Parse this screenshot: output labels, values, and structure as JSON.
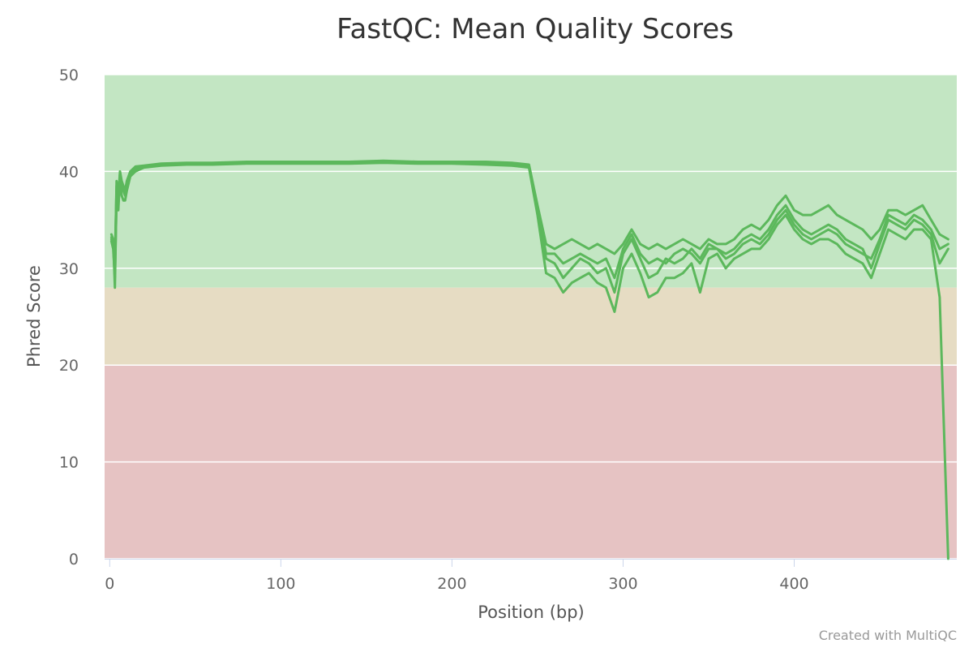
{
  "chart_data": {
    "type": "line",
    "title": "FastQC: Mean Quality Scores",
    "xlabel": "Position (bp)",
    "ylabel": "Phred Score",
    "xlim": [
      -3,
      495
    ],
    "ylim": [
      0,
      50
    ],
    "xticks": [
      0,
      100,
      200,
      300,
      400
    ],
    "yticks": [
      0,
      10,
      20,
      30,
      40,
      50
    ],
    "grid": true,
    "bands": [
      {
        "from": 28,
        "to": 50,
        "color": "#c3e6c3"
      },
      {
        "from": 20,
        "to": 28,
        "color": "#e6dcc3"
      },
      {
        "from": 0,
        "to": 20,
        "color": "#e6c3c3"
      }
    ],
    "line_color": "#5cb85c",
    "x": [
      1,
      2,
      3,
      4,
      5,
      6,
      7,
      8,
      9,
      10,
      12,
      15,
      20,
      30,
      45,
      60,
      80,
      100,
      120,
      140,
      160,
      180,
      200,
      220,
      235,
      245,
      250,
      255,
      260,
      265,
      270,
      275,
      280,
      285,
      290,
      295,
      300,
      305,
      310,
      315,
      320,
      325,
      330,
      335,
      340,
      345,
      350,
      355,
      360,
      365,
      370,
      375,
      380,
      385,
      390,
      395,
      400,
      405,
      410,
      415,
      420,
      425,
      430,
      435,
      440,
      445,
      450,
      455,
      460,
      465,
      470,
      475,
      480,
      485,
      490
    ],
    "series": [
      {
        "values": [
          33.5,
          33.0,
          28.0,
          38.0,
          36.0,
          39.5,
          38.5,
          38.0,
          37.5,
          38.5,
          39.5,
          40.2,
          40.5,
          40.7,
          40.8,
          40.8,
          40.9,
          40.9,
          40.9,
          40.9,
          41.0,
          40.9,
          40.9,
          40.9,
          40.8,
          40.5,
          36.0,
          31.0,
          30.5,
          29.0,
          30.0,
          31.0,
          30.5,
          29.5,
          30.0,
          27.5,
          31.5,
          33.0,
          31.0,
          29.0,
          29.5,
          31.0,
          30.5,
          31.0,
          32.0,
          31.0,
          32.5,
          32.0,
          31.5,
          32.0,
          33.0,
          33.5,
          33.0,
          34.0,
          35.5,
          36.5,
          35.0,
          34.0,
          33.5,
          34.0,
          34.5,
          34.0,
          33.0,
          32.5,
          32.0,
          30.0,
          32.5,
          35.0,
          34.5,
          34.0,
          35.0,
          34.5,
          33.5,
          30.5,
          32.0
        ]
      },
      {
        "values": [
          33.0,
          32.5,
          30.0,
          39.0,
          37.5,
          40.0,
          39.0,
          38.5,
          38.0,
          39.0,
          40.0,
          40.5,
          40.6,
          40.8,
          40.9,
          40.9,
          41.0,
          41.0,
          41.0,
          41.0,
          41.1,
          41.0,
          41.0,
          41.0,
          40.9,
          40.7,
          36.5,
          32.5,
          32.0,
          32.5,
          33.0,
          32.5,
          32.0,
          32.5,
          32.0,
          31.5,
          32.5,
          34.0,
          32.5,
          32.0,
          32.5,
          32.0,
          32.5,
          33.0,
          32.5,
          32.0,
          33.0,
          32.5,
          32.5,
          33.0,
          34.0,
          34.5,
          34.0,
          35.0,
          36.5,
          37.5,
          36.0,
          35.5,
          35.5,
          36.0,
          36.5,
          35.5,
          35.0,
          34.5,
          34.0,
          33.0,
          34.0,
          36.0,
          36.0,
          35.5,
          36.0,
          36.5,
          35.0,
          33.5,
          33.0
        ]
      },
      {
        "values": [
          32.8,
          32.0,
          29.0,
          37.5,
          36.5,
          39.0,
          37.5,
          37.0,
          37.0,
          38.0,
          39.5,
          40.0,
          40.4,
          40.6,
          40.7,
          40.7,
          40.8,
          40.8,
          40.8,
          40.8,
          40.9,
          40.8,
          40.8,
          40.7,
          40.6,
          40.4,
          35.5,
          29.5,
          29.0,
          27.5,
          28.5,
          29.0,
          29.5,
          28.5,
          28.0,
          25.5,
          30.0,
          31.5,
          29.5,
          27.0,
          27.5,
          29.0,
          29.0,
          29.5,
          30.5,
          27.5,
          31.0,
          31.5,
          30.0,
          31.0,
          31.5,
          32.0,
          32.0,
          33.0,
          34.5,
          35.5,
          34.0,
          33.0,
          32.5,
          33.0,
          33.0,
          32.5,
          31.5,
          31.0,
          30.5,
          29.0,
          31.5,
          34.0,
          33.5,
          33.0,
          34.0,
          34.0,
          33.0,
          27.0,
          0.0
        ]
      },
      {
        "values": [
          33.2,
          32.8,
          31.0,
          38.5,
          37.0,
          39.8,
          38.8,
          38.2,
          37.8,
          38.8,
          39.8,
          40.3,
          40.5,
          40.7,
          40.8,
          40.8,
          40.9,
          40.9,
          40.9,
          40.9,
          41.0,
          40.9,
          40.9,
          40.8,
          40.7,
          40.5,
          36.2,
          31.5,
          31.5,
          30.5,
          31.0,
          31.5,
          31.0,
          30.5,
          31.0,
          29.0,
          32.0,
          33.5,
          31.5,
          30.5,
          31.0,
          30.5,
          31.5,
          32.0,
          31.5,
          30.5,
          32.0,
          32.0,
          31.0,
          31.5,
          32.5,
          33.0,
          32.5,
          33.5,
          35.0,
          36.0,
          34.5,
          33.5,
          33.0,
          33.5,
          34.0,
          33.5,
          32.5,
          32.0,
          31.5,
          31.0,
          33.0,
          35.5,
          35.0,
          34.5,
          35.5,
          35.0,
          34.0,
          32.0,
          32.5
        ]
      }
    ]
  },
  "credits": "Created with MultiQC"
}
